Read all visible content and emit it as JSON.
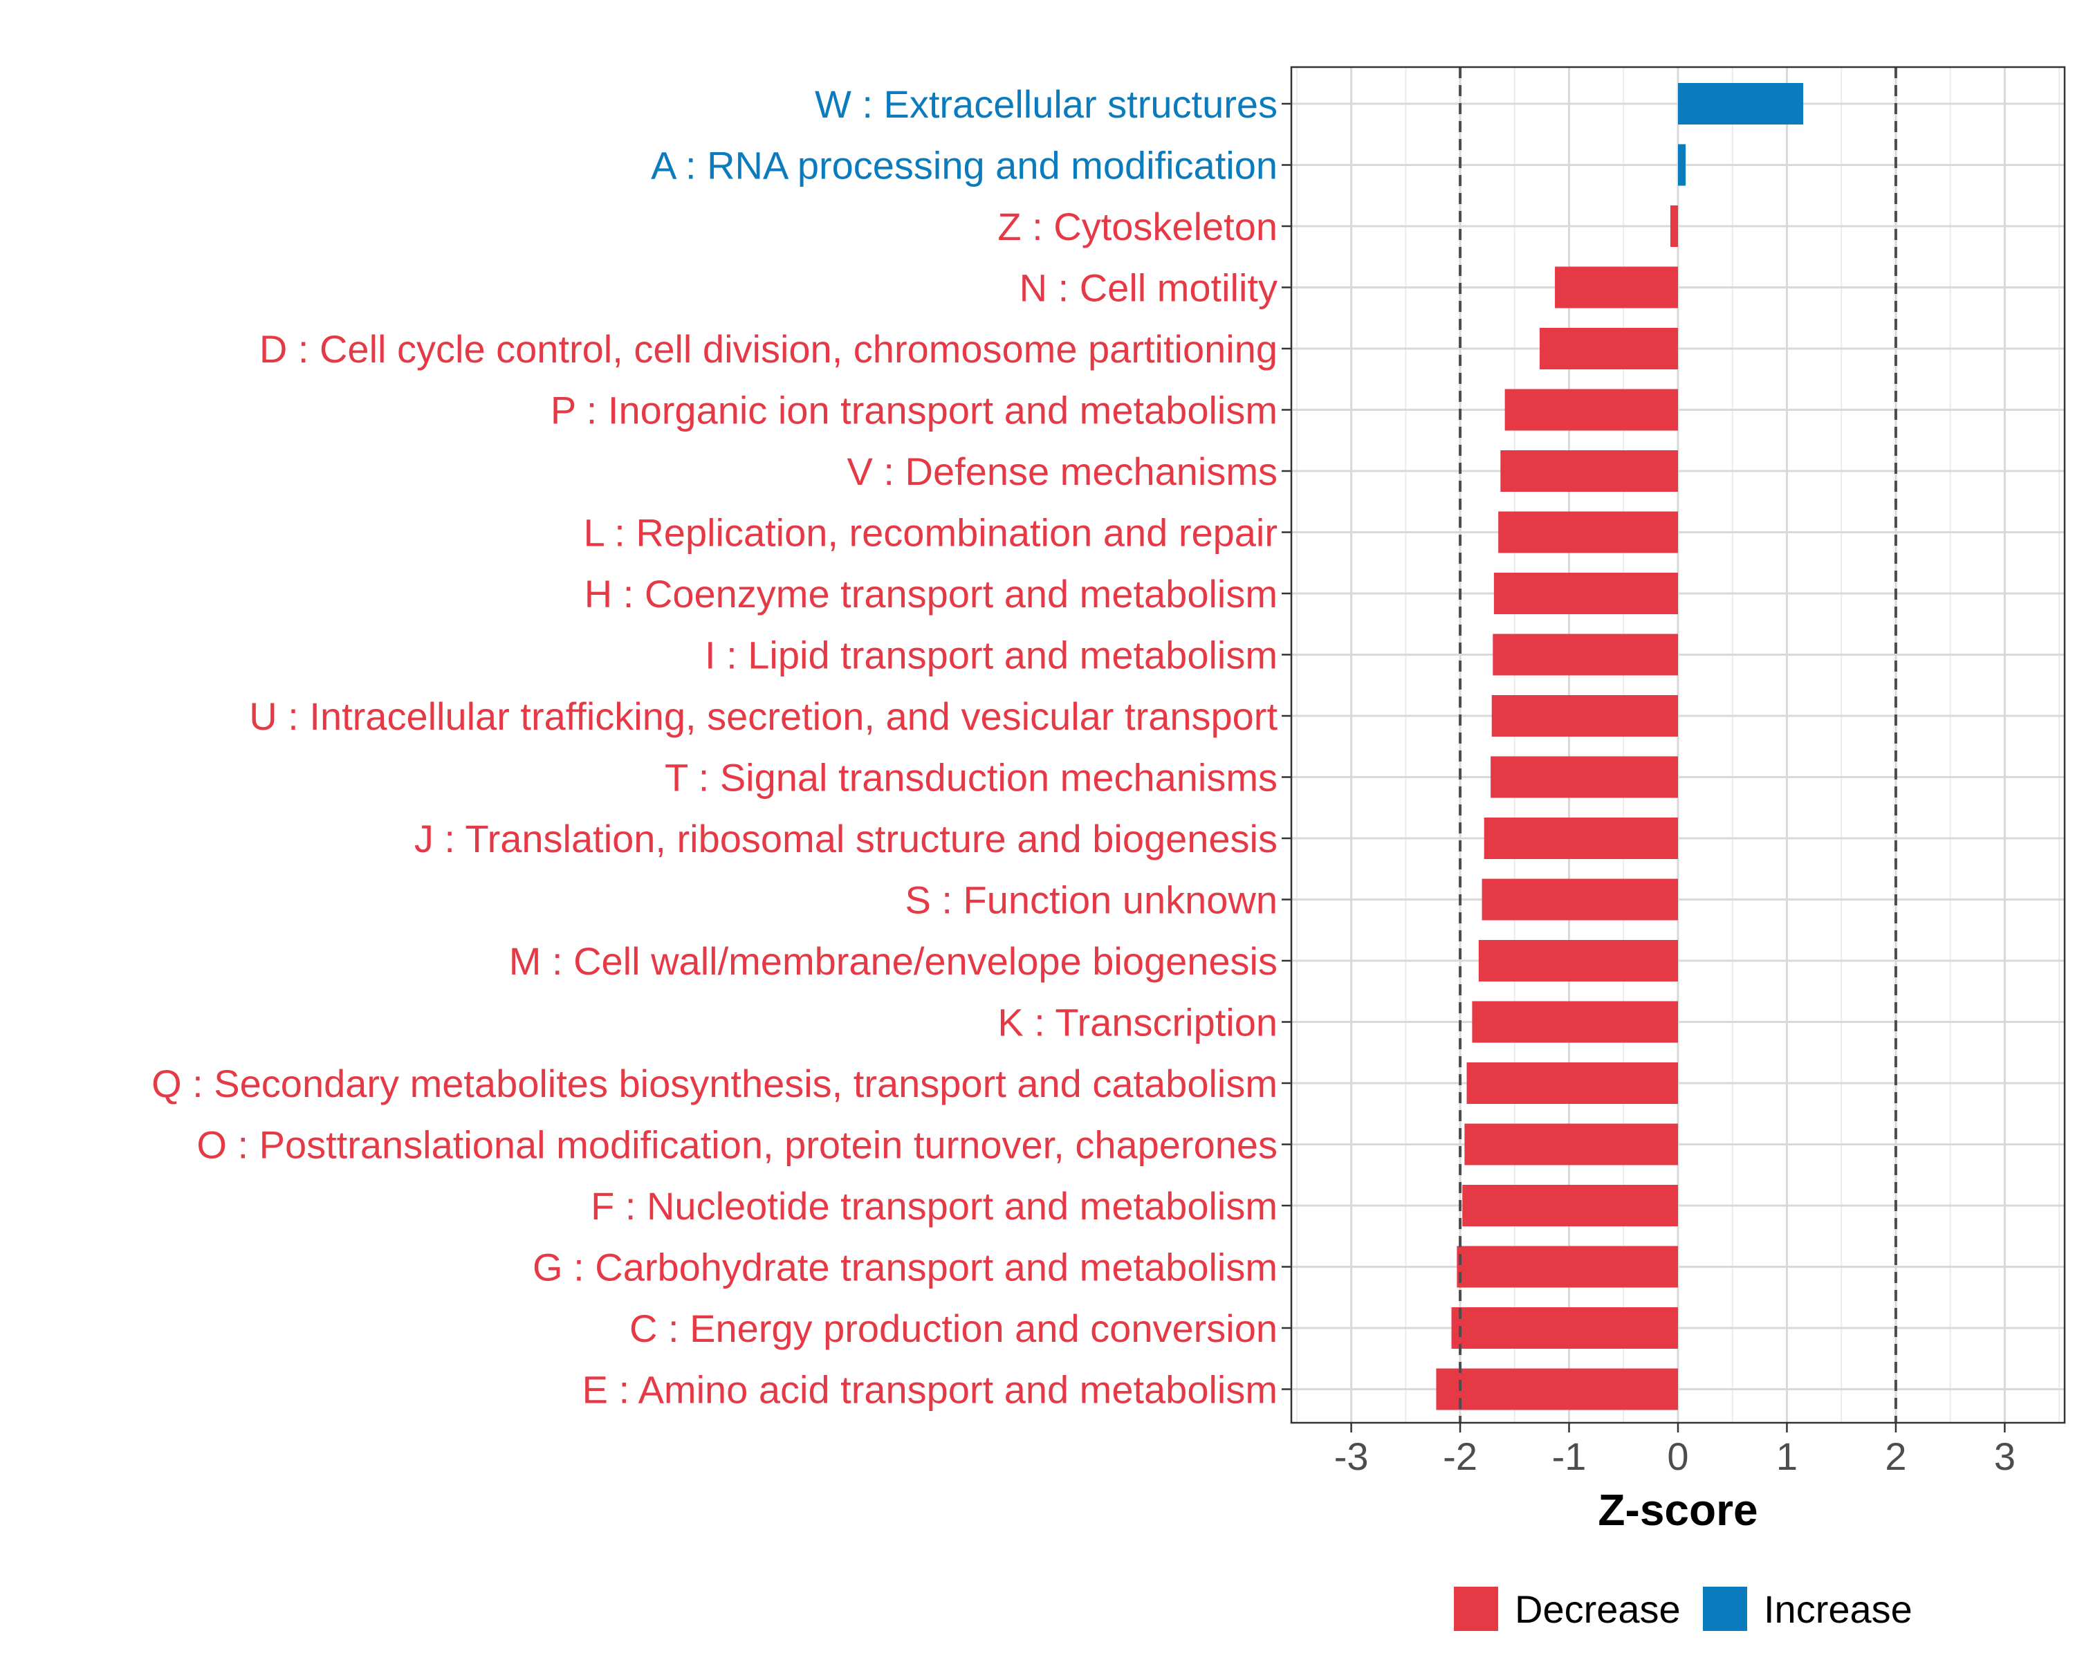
{
  "chart_data": {
    "type": "bar",
    "orientation": "horizontal",
    "title": "",
    "xlabel": "Z-score",
    "ylabel": "",
    "xlim": [
      -3.55,
      3.55
    ],
    "xticks": [
      -3,
      -2,
      -1,
      0,
      1,
      2,
      3
    ],
    "xtick_labels": [
      "-3",
      "-2",
      "-1",
      "0",
      "1",
      "2",
      "3"
    ],
    "reference_lines": [
      -2,
      2
    ],
    "grid": true,
    "categories": [
      "W : Extracellular structures",
      "A : RNA processing and modification",
      "Z : Cytoskeleton",
      "N : Cell motility",
      "D : Cell cycle control, cell division, chromosome partitioning",
      "P : Inorganic ion transport and metabolism",
      "V : Defense mechanisms",
      "L : Replication, recombination and repair",
      "H : Coenzyme transport and metabolism",
      "I : Lipid transport and metabolism",
      "U : Intracellular trafficking, secretion, and vesicular transport",
      "T : Signal transduction mechanisms",
      "J : Translation, ribosomal structure and biogenesis",
      "S : Function unknown",
      "M : Cell wall/membrane/envelope biogenesis",
      "K : Transcription",
      "Q : Secondary metabolites biosynthesis, transport and catabolism",
      "O : Posttranslational modification, protein turnover, chaperones",
      "F : Nucleotide transport and metabolism",
      "G : Carbohydrate transport and metabolism",
      "C : Energy production and conversion",
      "E : Amino acid transport and metabolism"
    ],
    "values": [
      1.15,
      0.07,
      -0.07,
      -1.13,
      -1.27,
      -1.59,
      -1.63,
      -1.65,
      -1.69,
      -1.7,
      -1.71,
      -1.72,
      -1.78,
      -1.8,
      -1.83,
      -1.89,
      -1.94,
      -1.96,
      -1.98,
      -2.03,
      -2.08,
      -2.22
    ],
    "groups": [
      "Increase",
      "Increase",
      "Decrease",
      "Decrease",
      "Decrease",
      "Decrease",
      "Decrease",
      "Decrease",
      "Decrease",
      "Decrease",
      "Decrease",
      "Decrease",
      "Decrease",
      "Decrease",
      "Decrease",
      "Decrease",
      "Decrease",
      "Decrease",
      "Decrease",
      "Decrease",
      "Decrease",
      "Decrease"
    ],
    "legend": {
      "position": "bottom",
      "items": [
        {
          "label": "Decrease",
          "color": "#e63946"
        },
        {
          "label": "Increase",
          "color": "#0a7bbd"
        }
      ]
    }
  }
}
